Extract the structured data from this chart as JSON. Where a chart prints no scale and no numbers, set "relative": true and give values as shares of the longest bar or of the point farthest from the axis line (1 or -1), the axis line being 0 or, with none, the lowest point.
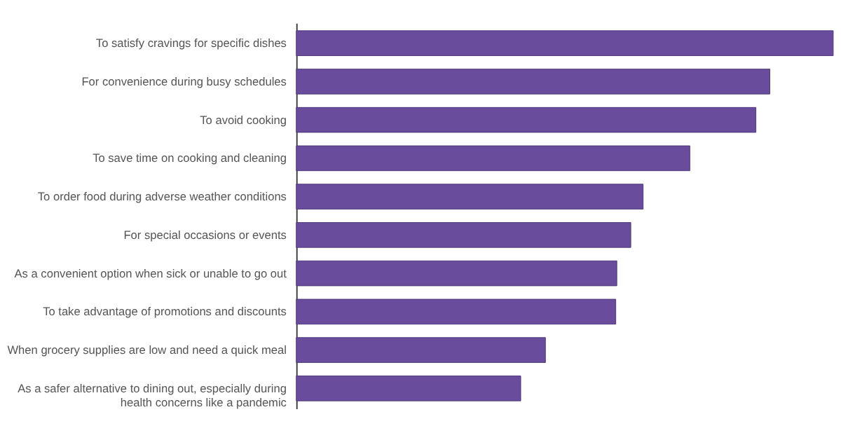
{
  "chart_data": {
    "type": "bar",
    "orientation": "horizontal",
    "relative": true,
    "color": "#6a4c9c",
    "categories": [
      "To satisfy cravings for specific dishes",
      "For convenience during busy schedules",
      "To avoid cooking",
      "To save time on cooking and cleaning",
      "To order food during adverse weather conditions",
      "For special occasions or events",
      "As a convenient option when sick or unable to go out",
      "To take advantage of promotions and discounts",
      "When grocery supplies are low and need a quick meal",
      "As a safer alternative to dining out, especially during health concerns like a pandemic"
    ],
    "values": [
      1,
      0.882,
      0.856,
      0.733,
      0.646,
      0.623,
      0.597,
      0.595,
      0.464,
      0.418
    ],
    "grid": false
  }
}
